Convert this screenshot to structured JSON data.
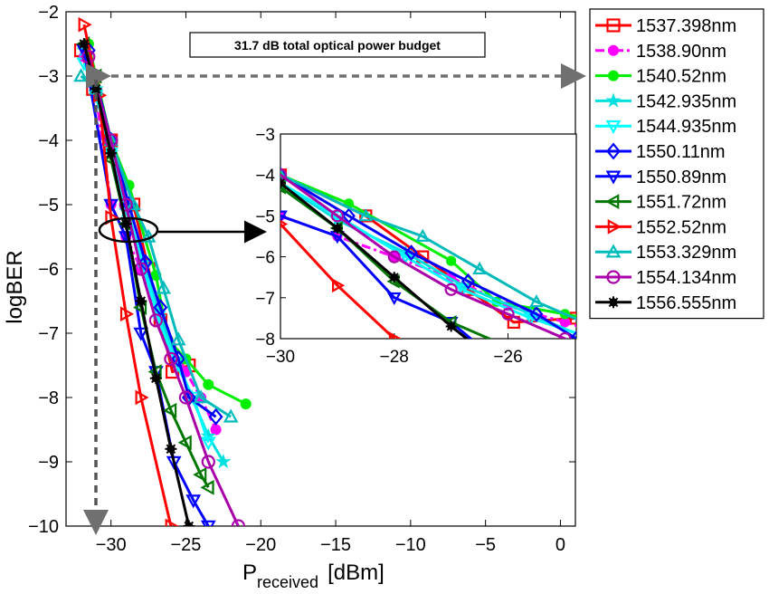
{
  "chart_data": {
    "type": "line",
    "title": "",
    "xlabel": "P",
    "xlabel_sub": "received",
    "xlabel_unit": "[dBm]",
    "ylabel": "logBER",
    "xlim": [
      -33,
      1
    ],
    "ylim": [
      -10,
      -2
    ],
    "xticks": [
      -30,
      -25,
      -20,
      -15,
      -10,
      -5,
      0
    ],
    "yticks": [
      -2,
      -3,
      -4,
      -5,
      -6,
      -7,
      -8,
      -9,
      -10
    ],
    "annotation": "31.7 dB total optical power budget",
    "inset": {
      "xlim": [
        -30,
        -24.8
      ],
      "ylim": [
        -8,
        -3
      ],
      "xticks": [
        -30,
        -28,
        -26
      ],
      "yticks": [
        -3,
        -4,
        -5,
        -6,
        -7,
        -8
      ]
    },
    "legend_position": "right-outside",
    "series": [
      {
        "name": "1537.398nm",
        "color": "#ff0000",
        "marker": "square",
        "dash": "solid",
        "x": [
          -32.0,
          -31.2,
          -30.0,
          -28.5,
          -27.5,
          -26.7,
          -25.9,
          -24.8
        ],
        "y": [
          -2.6,
          -3.2,
          -4.0,
          -5.0,
          -6.0,
          -6.8,
          -7.6,
          -7.5
        ]
      },
      {
        "name": "1538.90nm",
        "color": "#ff00ff",
        "marker": "circle-filled",
        "dash": "dashdot",
        "x": [
          -31.8,
          -31.0,
          -30.0,
          -29.0,
          -28.0,
          -27.0,
          -26.0,
          -25.0,
          -24.0,
          -23.0
        ],
        "y": [
          -2.7,
          -3.3,
          -5.0,
          -5.5,
          -6.0,
          -6.5,
          -7.2,
          -7.6,
          -8.0,
          -8.5
        ]
      },
      {
        "name": "1540.52nm",
        "color": "#00ee00",
        "marker": "circle-filled",
        "dash": "solid",
        "x": [
          -31.5,
          -30.0,
          -28.8,
          -27.0,
          -26.2,
          -25.0,
          -23.5,
          -21.0
        ],
        "y": [
          -2.5,
          -4.0,
          -4.7,
          -6.1,
          -7.1,
          -7.4,
          -7.8,
          -8.1
        ]
      },
      {
        "name": "1542.935nm",
        "color": "#00e0e0",
        "marker": "star",
        "dash": "solid",
        "x": [
          -31.8,
          -31.0,
          -30.0,
          -29.0,
          -27.8,
          -26.8,
          -25.6,
          -24.6,
          -23.5,
          -22.5
        ],
        "y": [
          -2.6,
          -3.2,
          -4.2,
          -5.1,
          -5.9,
          -6.7,
          -7.4,
          -8.0,
          -8.6,
          -9.0
        ]
      },
      {
        "name": "1544.935nm",
        "color": "#00ffff",
        "marker": "triangle-down",
        "dash": "solid",
        "x": [
          -31.8,
          -31.0,
          -30.0,
          -29.0,
          -27.8,
          -26.8,
          -25.6,
          -24.5,
          -23.5
        ],
        "y": [
          -2.8,
          -3.3,
          -4.2,
          -5.0,
          -6.0,
          -6.8,
          -7.5,
          -8.0,
          -8.7
        ]
      },
      {
        "name": "1550.11nm",
        "color": "#0000ff",
        "marker": "diamond",
        "dash": "solid",
        "x": [
          -31.5,
          -30.0,
          -28.8,
          -27.7,
          -26.7,
          -25.5,
          -24.8,
          -23.0
        ],
        "y": [
          -2.6,
          -4.0,
          -5.0,
          -5.9,
          -6.6,
          -7.4,
          -8.0,
          -8.3
        ]
      },
      {
        "name": "1550.89nm",
        "color": "#0000ff",
        "marker": "triangle-down",
        "dash": "solid",
        "x": [
          -31.8,
          -30.0,
          -29.0,
          -28.0,
          -27.0,
          -25.8,
          -24.5,
          -23.5
        ],
        "y": [
          -2.6,
          -5.0,
          -5.5,
          -7.0,
          -7.6,
          -9.0,
          -9.6,
          -10.0
        ]
      },
      {
        "name": "1551.72nm",
        "color": "#007700",
        "marker": "triangle-left",
        "dash": "solid",
        "x": [
          -31.8,
          -31.0,
          -30.0,
          -29.0,
          -28.0,
          -27.0,
          -26.0,
          -25.0,
          -24.0,
          -23.5
        ],
        "y": [
          -2.5,
          -3.0,
          -4.3,
          -5.3,
          -6.6,
          -7.6,
          -8.2,
          -8.7,
          -9.2,
          -9.4
        ]
      },
      {
        "name": "1552.52nm",
        "color": "#ff0000",
        "marker": "triangle-right",
        "dash": "solid",
        "x": [
          -31.8,
          -30.8,
          -30.0,
          -29.0,
          -28.0,
          -26.0
        ],
        "y": [
          -2.2,
          -3.3,
          -5.2,
          -6.7,
          -8.0,
          -10.0
        ]
      },
      {
        "name": "1553.329nm",
        "color": "#00bbbb",
        "marker": "triangle-up",
        "dash": "solid",
        "x": [
          -32.0,
          -31.0,
          -30.0,
          -28.5,
          -27.5,
          -26.5,
          -25.5,
          -24.0,
          -22.0
        ],
        "y": [
          -3.0,
          -3.2,
          -4.0,
          -5.0,
          -5.5,
          -6.3,
          -7.1,
          -8.0,
          -8.3
        ]
      },
      {
        "name": "1554.134nm",
        "color": "#aa00aa",
        "marker": "circle",
        "dash": "solid",
        "x": [
          -31.5,
          -30.0,
          -29.0,
          -28.0,
          -27.0,
          -26.0,
          -25.0,
          -23.5,
          -21.5
        ],
        "y": [
          -2.7,
          -4.0,
          -5.0,
          -6.0,
          -6.8,
          -7.4,
          -8.0,
          -9.0,
          -10.0
        ]
      },
      {
        "name": "1556.555nm",
        "color": "#000000",
        "marker": "asterisk",
        "dash": "solid",
        "x": [
          -31.8,
          -31.0,
          -30.0,
          -29.0,
          -28.0,
          -27.0,
          -26.0,
          -24.8
        ],
        "y": [
          -2.5,
          -3.2,
          -4.2,
          -5.3,
          -6.5,
          -7.7,
          -8.8,
          -10.0
        ]
      }
    ]
  }
}
